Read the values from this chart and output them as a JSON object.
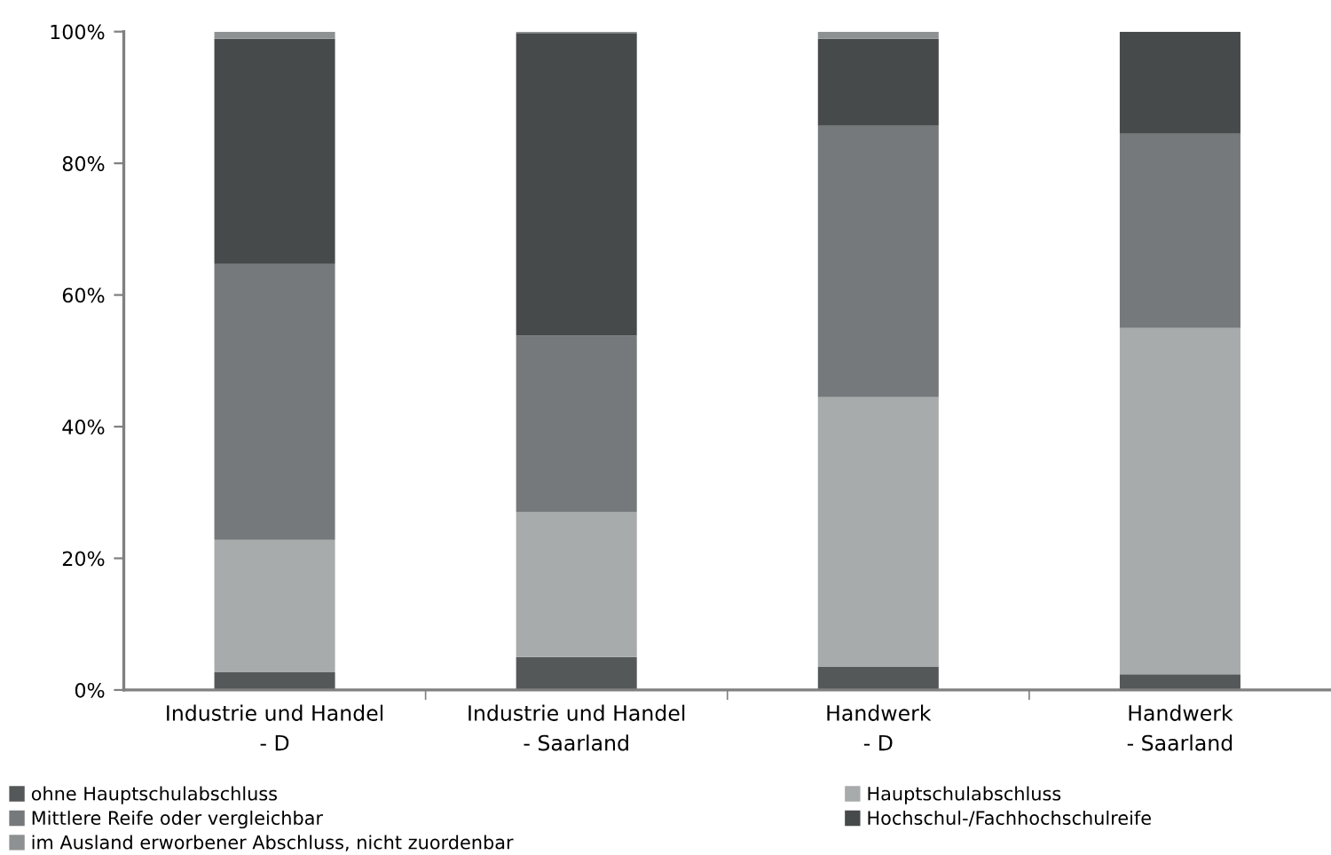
{
  "chart_data": {
    "type": "bar",
    "stacked": true,
    "categories": [
      "Industrie und Handel\n- D",
      "Industrie und Handel\n- Saarland",
      "Handwerk\n- D",
      "Handwerk\n- Saarland"
    ],
    "series": [
      {
        "name": "ohne Hauptschulabschluss",
        "color": "#555859",
        "values": [
          2.7,
          5.0,
          3.5,
          2.4
        ]
      },
      {
        "name": "Hauptschulabschluss",
        "color": "#a8abab",
        "values": [
          20.1,
          22.0,
          41.0,
          52.6
        ]
      },
      {
        "name": "Mittlere Reife oder vergleichbar",
        "color": "#75797b",
        "values": [
          41.9,
          26.8,
          41.2,
          29.5
        ]
      },
      {
        "name": "Hochschul-/Fachhochschulreife",
        "color": "#474a4b",
        "values": [
          34.2,
          46.0,
          13.2,
          15.5
        ]
      },
      {
        "name": "im Ausland erworbener Abschluss, nicht zuordenbar",
        "color": "#8e9192",
        "values": [
          1.1,
          0.2,
          1.1,
          null
        ]
      }
    ],
    "ylim": [
      0,
      100
    ],
    "yticks": [
      {
        "value": 0,
        "label": "0%"
      },
      {
        "value": 20,
        "label": "20%"
      },
      {
        "value": 40,
        "label": "40%"
      },
      {
        "value": 60,
        "label": "60%"
      },
      {
        "value": 80,
        "label": "80%"
      },
      {
        "value": 100,
        "label": "100%"
      }
    ],
    "grid": false,
    "legend": "bottom"
  }
}
